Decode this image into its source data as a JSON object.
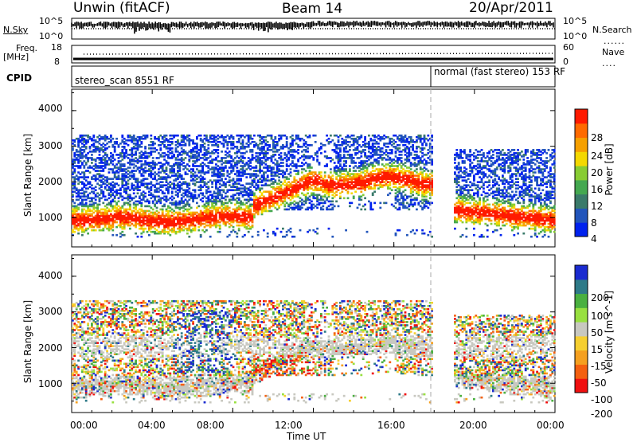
{
  "header": {
    "station": "Unwin (fitACF)",
    "beam": "Beam 14",
    "date": "20/Apr/2011"
  },
  "noise_panel": {
    "left_label": "N.Sky",
    "right_label": "N.Search",
    "left_ticks": [
      "10^5",
      "10^0"
    ],
    "right_ticks": [
      "10^5",
      "10^0"
    ]
  },
  "freq_panel": {
    "left_label_line1": "Freq.",
    "left_label_line2": "[MHz]",
    "right_label": "Nave",
    "left_ticks": [
      "18",
      "8"
    ],
    "right_ticks": [
      "60",
      "0"
    ]
  },
  "cpid_panel": {
    "label": "CPID",
    "modes": [
      {
        "name": "stereo_scan 8551 RF",
        "start_hour": 0,
        "end_hour": 18
      },
      {
        "name": "normal (fast stereo) 153 RF",
        "start_hour": 18,
        "end_hour": 24
      }
    ]
  },
  "chart_data": [
    {
      "type": "heatmap",
      "title": "",
      "parameter": "Power",
      "ylabel": "Slant Range [km]",
      "xlabel": "Time UT",
      "ylim": [
        180,
        4600
      ],
      "xlim": [
        0,
        24
      ],
      "yticks": [
        1000,
        2000,
        3000,
        4000
      ],
      "colorbar_label": "Power [dB]",
      "colorbar_ticks": [
        "4",
        "8",
        "12",
        "16",
        "20",
        "24",
        "28"
      ],
      "colorbar_range": [
        0,
        30
      ],
      "colors": [
        "#0022ee",
        "#2255bb",
        "#3a7a6a",
        "#44a850",
        "#88cc33",
        "#f4d800",
        "#f6a000",
        "#ff6a00",
        "#ff1a00"
      ]
    },
    {
      "type": "heatmap",
      "title": "",
      "parameter": "Velocity",
      "ylabel": "Slant Range [km]",
      "xlabel": "Time UT",
      "ylim": [
        180,
        4600
      ],
      "xlim": [
        0,
        24
      ],
      "yticks": [
        1000,
        2000,
        3000,
        4000
      ],
      "colorbar_label": "Velocity [m s^-1]",
      "colorbar_ticks": [
        "200",
        "100",
        "50",
        "15",
        "-15",
        "-50",
        "-100",
        "-200"
      ],
      "colors": [
        "#1a2bd0",
        "#2e7a88",
        "#4ab040",
        "#98e040",
        "#c8c8c0",
        "#f6cf30",
        "#f5a020",
        "#f46010",
        "#f01010"
      ]
    }
  ],
  "x_axis": {
    "ticks": [
      "00:00",
      "04:00",
      "08:00",
      "12:00",
      "16:00",
      "20:00",
      "00:00"
    ],
    "tick_hours": [
      0,
      4,
      8,
      12,
      16,
      20,
      24
    ],
    "label": "Time UT"
  }
}
